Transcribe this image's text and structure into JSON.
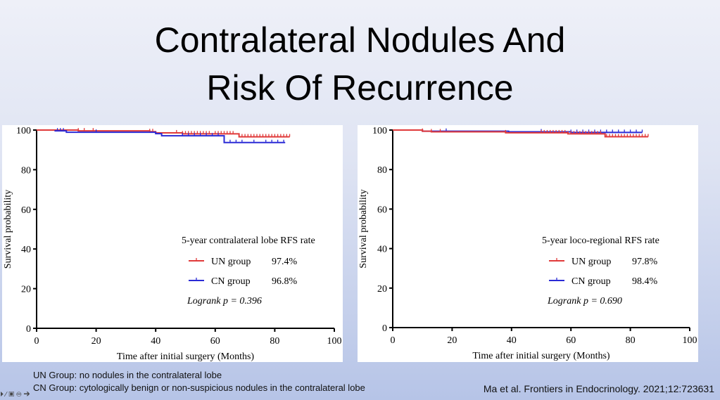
{
  "title": {
    "line1": "Contralateral Nodules And",
    "line2": "Risk Of Recurrence"
  },
  "colors": {
    "un": "#e03a3a",
    "cn": "#2b2bd6"
  },
  "chart_data": [
    {
      "type": "line",
      "subtype": "kaplan-meier",
      "ylabel": "Survival probability",
      "xlabel": "Time after initial surgery (Months)",
      "xlim": [
        0,
        100
      ],
      "ylim": [
        0,
        100
      ],
      "xticks": [
        0,
        20,
        40,
        60,
        80,
        100
      ],
      "yticks": [
        0,
        20,
        40,
        60,
        80,
        100
      ],
      "legend_title": "5-year contralateral lobe RFS rate",
      "legend_position": "center-right",
      "series": [
        {
          "name": "UN group",
          "rate": "97.4%",
          "color": "#e03a3a",
          "steps": [
            [
              0,
              100
            ],
            [
              14,
              99.6
            ],
            [
              38,
              99.2
            ],
            [
              40,
              98.6
            ],
            [
              49,
              98.1
            ],
            [
              68,
              96.6
            ],
            [
              85,
              96.6
            ]
          ],
          "censors": [
            14,
            16,
            19,
            38,
            39,
            47,
            49,
            50,
            51,
            52,
            53,
            54,
            55,
            56,
            57,
            58,
            60,
            61,
            62,
            63,
            64,
            65,
            66,
            69,
            70,
            71,
            72,
            73,
            74,
            75,
            76,
            77,
            78,
            79,
            80,
            81,
            82,
            83,
            84,
            85
          ]
        },
        {
          "name": "CN group",
          "rate": "96.8%",
          "color": "#2b2bd6",
          "steps": [
            [
              6,
              99.6
            ],
            [
              10,
              98.9
            ],
            [
              40,
              98.2
            ],
            [
              42,
              97.1
            ],
            [
              63,
              93.7
            ],
            [
              83.5,
              93.7
            ]
          ],
          "censors": [
            7,
            8,
            9,
            20,
            49,
            51,
            53,
            55,
            57,
            59,
            61,
            65,
            67,
            69,
            73,
            77,
            79,
            81,
            83
          ]
        }
      ],
      "annotation": "Logrank p = 0.396"
    },
    {
      "type": "line",
      "subtype": "kaplan-meier",
      "ylabel": "Survival probability",
      "xlabel": "Time after initial surgery (Months)",
      "xlim": [
        0,
        100
      ],
      "ylim": [
        0,
        100
      ],
      "xticks": [
        0,
        20,
        40,
        60,
        80,
        100
      ],
      "yticks": [
        0,
        20,
        40,
        60,
        80,
        100
      ],
      "legend_title": "5-year loco-regional RFS rate",
      "legend_position": "center-right",
      "series": [
        {
          "name": "CN group",
          "rate": "98.4%",
          "color": "#2b2bd6",
          "steps": [
            [
              0,
              100
            ],
            [
              10,
              99.4
            ],
            [
              39,
              99.1
            ],
            [
              60,
              98.8
            ],
            [
              84,
              98.8
            ]
          ],
          "censors": [
            18,
            50,
            60,
            62,
            64,
            66,
            68,
            70,
            72,
            74,
            76,
            78,
            80,
            82,
            84
          ]
        },
        {
          "name": "UN group",
          "rate": "97.8%",
          "color": "#e03a3a",
          "steps": [
            [
              0,
              100
            ],
            [
              10,
              99.4
            ],
            [
              13,
              99.1
            ],
            [
              38,
              98.6
            ],
            [
              59,
              98.1
            ],
            [
              71.5,
              96.6
            ],
            [
              86,
              96.6
            ]
          ],
          "censors": [
            10,
            13,
            16,
            38,
            50,
            51,
            52,
            53,
            54,
            55,
            56,
            57,
            58,
            59,
            60,
            61,
            62,
            63,
            64,
            65,
            66,
            67,
            68,
            69,
            70,
            72,
            73,
            74,
            75,
            76,
            77,
            78,
            79,
            80,
            81,
            82,
            83,
            84,
            85,
            86
          ]
        }
      ],
      "annotation": "Logrank p = 0.690"
    }
  ],
  "notes": {
    "un": "UN Group: no nodules in the contralateral lobe",
    "cn": "CN Group: cytologically benign or non-suspicious nodules in the contralateral lobe"
  },
  "citation": "Ma et al.  Frontiers in Endocrinology. 2021;12:723631"
}
